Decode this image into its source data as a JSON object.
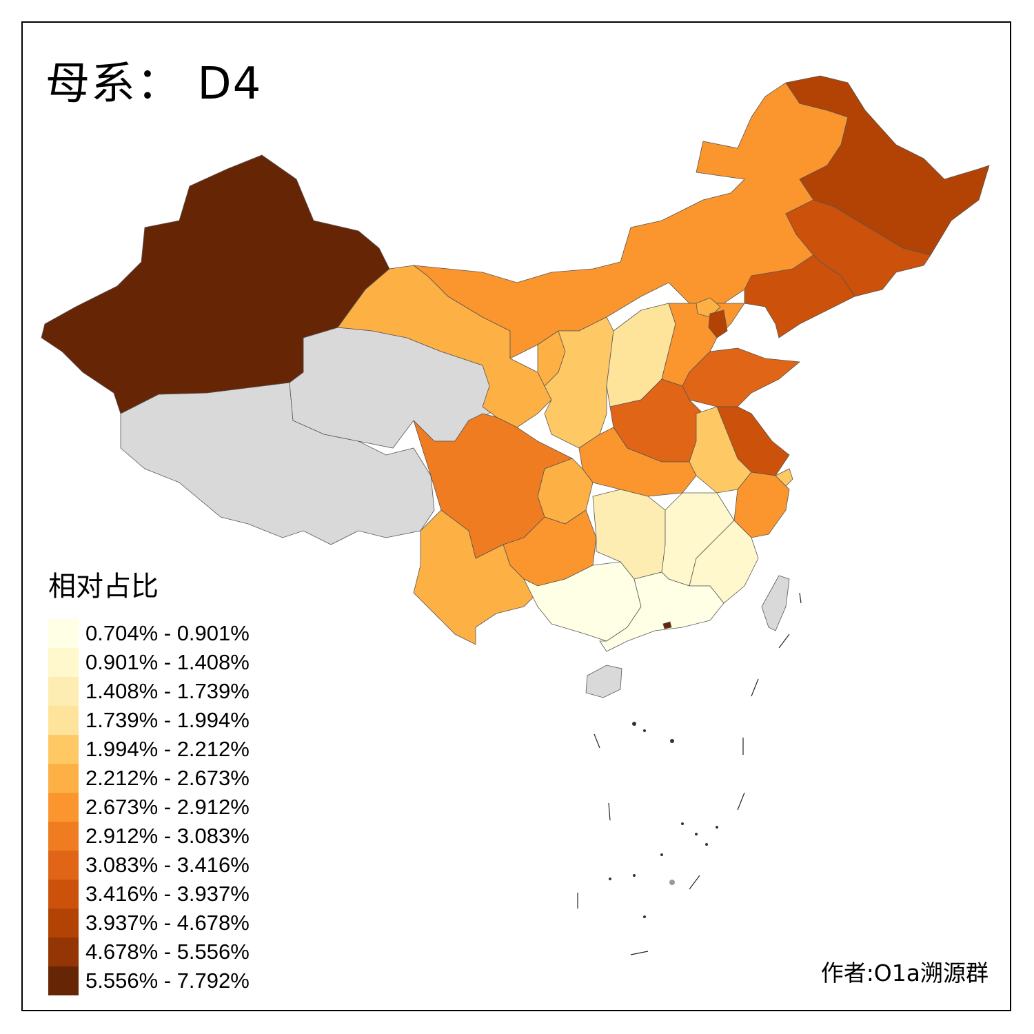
{
  "title": "母系： D4",
  "legend": {
    "title": "相对占比",
    "classes": [
      {
        "label": "0.704% - 0.901%",
        "color": "#ffffe5"
      },
      {
        "label": "0.901% - 1.408%",
        "color": "#fff8cc"
      },
      {
        "label": "1.408% - 1.739%",
        "color": "#feedb2"
      },
      {
        "label": "1.739% - 1.994%",
        "color": "#fee39b"
      },
      {
        "label": "1.994% - 2.212%",
        "color": "#fec965"
      },
      {
        "label": "2.212% - 2.673%",
        "color": "#fdb044"
      },
      {
        "label": "2.673% - 2.912%",
        "color": "#fb962e"
      },
      {
        "label": "2.912% - 3.083%",
        "color": "#f07c22"
      },
      {
        "label": "3.083% - 3.416%",
        "color": "#e06516"
      },
      {
        "label": "3.416% - 3.937%",
        "color": "#cc510b"
      },
      {
        "label": "3.937% - 4.678%",
        "color": "#b24304"
      },
      {
        "label": "4.678% - 5.556%",
        "color": "#933504"
      },
      {
        "label": "5.556% - 7.792%",
        "color": "#662505"
      }
    ]
  },
  "credit": "作者:O1a溯源群",
  "no_data_color": "#d9d9d9"
}
